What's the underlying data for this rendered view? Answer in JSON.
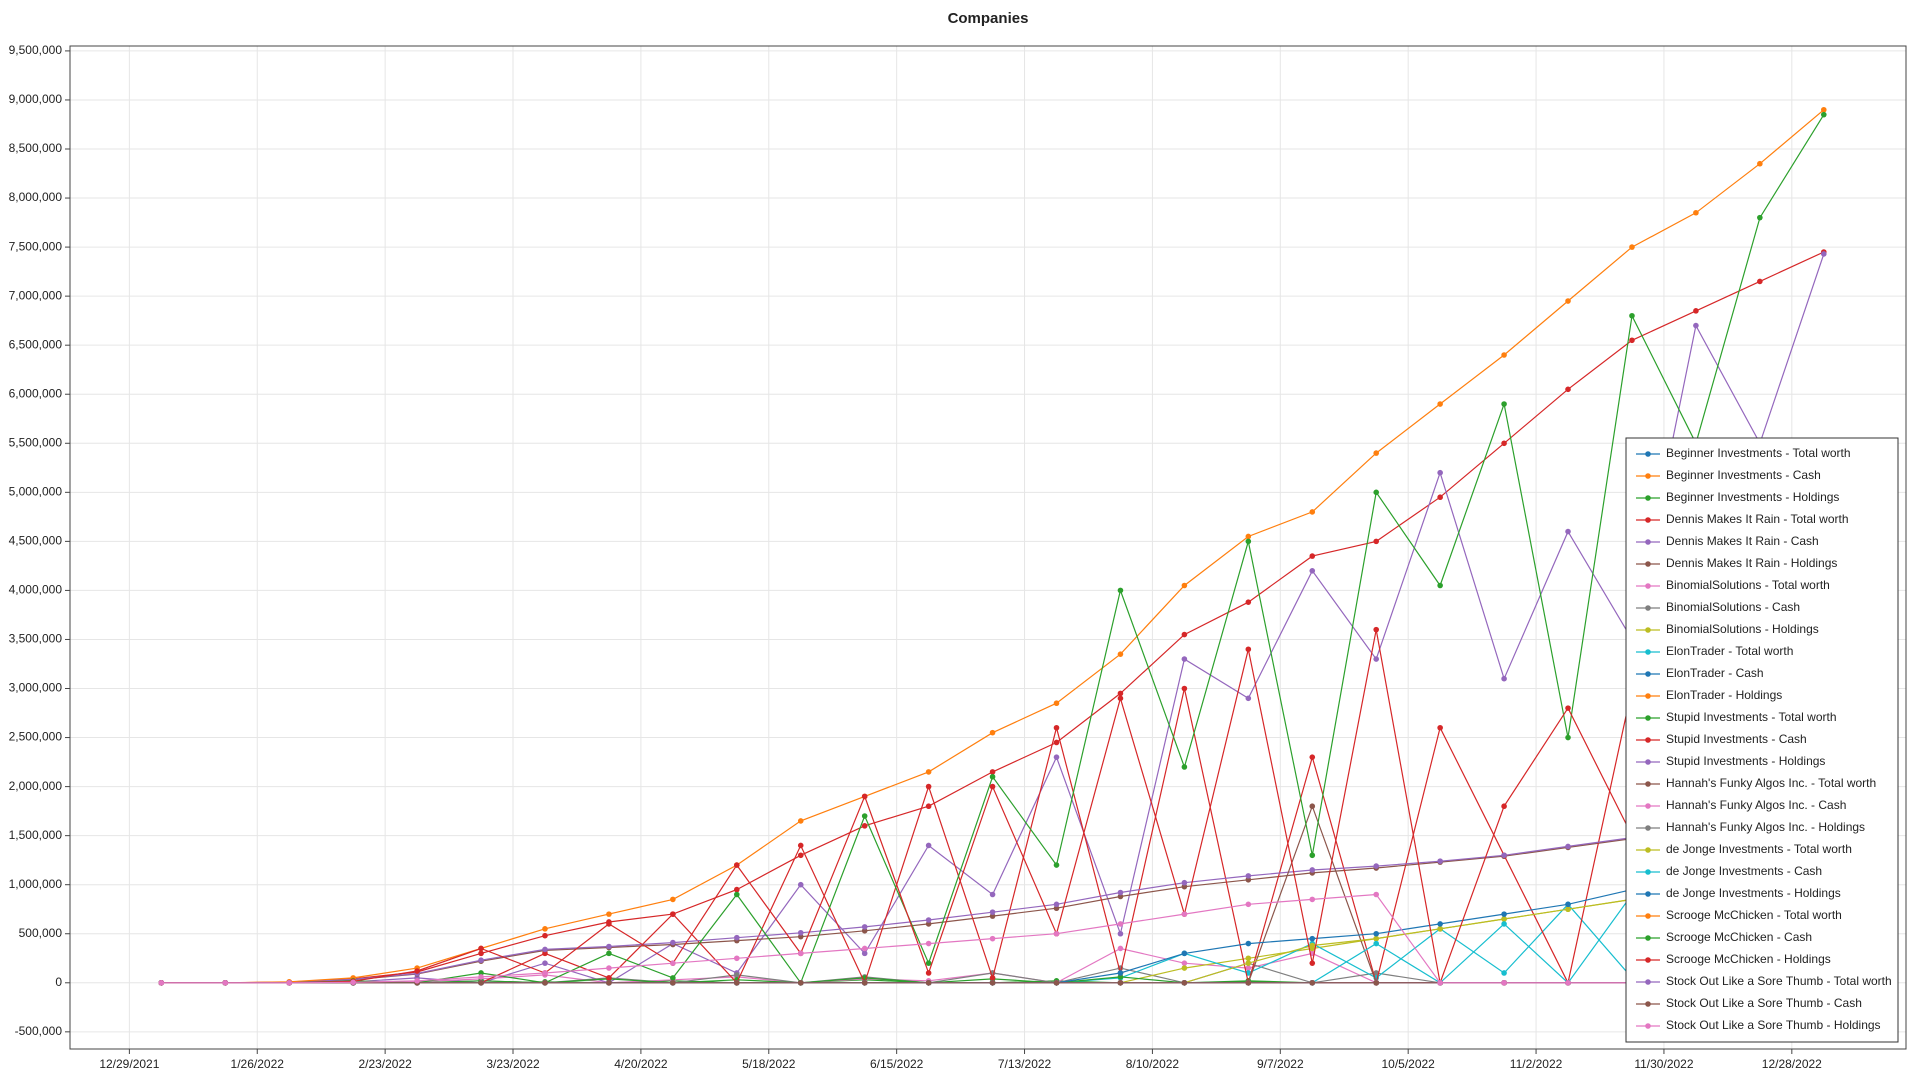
{
  "chart_data": {
    "type": "line",
    "title": "Companies",
    "x": [
      "1/5/2022",
      "1/19/2022",
      "2/2/2022",
      "2/16/2022",
      "3/2/2022",
      "3/16/2022",
      "3/30/2022",
      "4/13/2022",
      "4/27/2022",
      "5/11/2022",
      "5/25/2022",
      "6/8/2022",
      "6/22/2022",
      "7/6/2022",
      "7/20/2022",
      "8/3/2022",
      "8/17/2022",
      "8/31/2022",
      "9/14/2022",
      "9/28/2022",
      "10/12/2022",
      "10/26/2022",
      "11/9/2022",
      "11/23/2022",
      "12/7/2022",
      "12/21/2022",
      "1/4/2023"
    ],
    "xlim": [
      "12/16/2021",
      "1/22/2023"
    ],
    "xticks": [
      "12/29/2021",
      "1/26/2022",
      "2/23/2022",
      "3/23/2022",
      "4/20/2022",
      "5/18/2022",
      "6/15/2022",
      "7/13/2022",
      "8/10/2022",
      "9/7/2022",
      "10/5/2022",
      "11/2/2022",
      "11/30/2022",
      "12/28/2022"
    ],
    "ylim": [
      -675000,
      9550000
    ],
    "yticks": [
      {
        "value": -500000,
        "label": "-500,000"
      },
      0,
      {
        "value": 500000,
        "label": "500,000"
      },
      {
        "value": 1000000,
        "label": "1,000,000"
      },
      {
        "value": 1500000,
        "label": "1,500,000"
      },
      {
        "value": 2000000,
        "label": "2,000,000"
      },
      {
        "value": 2500000,
        "label": "2,500,000"
      },
      {
        "value": 3000000,
        "label": "3,000,000"
      },
      {
        "value": 3500000,
        "label": "3,500,000"
      },
      {
        "value": 4000000,
        "label": "4,000,000"
      },
      {
        "value": 4500000,
        "label": "4,500,000"
      },
      {
        "value": 5000000,
        "label": "5,000,000"
      },
      {
        "value": 5500000,
        "label": "5,500,000"
      },
      {
        "value": 6000000,
        "label": "6,000,000"
      },
      {
        "value": 6500000,
        "label": "6,500,000"
      },
      {
        "value": 7000000,
        "label": "7,000,000"
      },
      {
        "value": 7500000,
        "label": "7,500,000"
      },
      {
        "value": 8000000,
        "label": "8,000,000"
      },
      {
        "value": 8500000,
        "label": "8,500,000"
      },
      {
        "value": 9000000,
        "label": "9,000,000"
      },
      {
        "value": 9500000,
        "label": "9,500,000"
      }
    ],
    "grid": true,
    "legend": "lower right",
    "series": [
      {
        "name": "Beginner Investments - Total worth",
        "color": "#1f77b4",
        "values": [
          0,
          0,
          0,
          0,
          0,
          0,
          0,
          0,
          0,
          0,
          0,
          0,
          0,
          0,
          0,
          0,
          0,
          0,
          0,
          0,
          0,
          0,
          0,
          0,
          0,
          0,
          0
        ]
      },
      {
        "name": "Beginner Investments - Cash",
        "color": "#ff7f0e",
        "values": [
          0,
          0,
          0,
          0,
          0,
          0,
          0,
          0,
          0,
          0,
          0,
          0,
          0,
          0,
          0,
          0,
          0,
          0,
          0,
          0,
          0,
          0,
          0,
          0,
          0,
          0,
          0
        ]
      },
      {
        "name": "Beginner Investments - Holdings",
        "color": "#2ca02c",
        "values": [
          0,
          0,
          0,
          0,
          0,
          0,
          10000,
          0,
          20000,
          0,
          0,
          30000,
          0,
          0,
          20000,
          0,
          0,
          10000,
          0,
          0,
          0,
          0,
          0,
          0,
          0,
          0,
          0
        ]
      },
      {
        "name": "Dennis Makes It Rain - Total worth",
        "color": "#d62728",
        "values": [
          0,
          0,
          8000,
          40000,
          110000,
          300000,
          480000,
          620000,
          700000,
          950000,
          1300000,
          1600000,
          1800000,
          2150000,
          2450000,
          2950000,
          3550000,
          3880000,
          4350000,
          4500000,
          4950000,
          5500000,
          6050000,
          6550000,
          6850000,
          7150000,
          7450000
        ]
      },
      {
        "name": "Dennis Makes It Rain - Cash",
        "color": "#9467bd",
        "values": [
          0,
          0,
          0,
          10000,
          50000,
          0,
          200000,
          0,
          400000,
          100000,
          1000000,
          300000,
          1400000,
          900000,
          2300000,
          500000,
          3300000,
          2900000,
          4200000,
          3300000,
          5200000,
          3100000,
          4600000,
          3500000,
          6700000,
          5500000,
          7430000
        ]
      },
      {
        "name": "Dennis Makes It Rain - Holdings",
        "color": "#8c564b",
        "values": [
          0,
          0,
          5000,
          30000,
          90000,
          220000,
          330000,
          360000,
          390000,
          430000,
          470000,
          530000,
          600000,
          680000,
          760000,
          880000,
          980000,
          1050000,
          1120000,
          1170000,
          1230000,
          1290000,
          1380000,
          1470000,
          1520000,
          1540000,
          1560000
        ]
      },
      {
        "name": "BinomialSolutions - Total worth",
        "color": "#e377c2",
        "values": [
          0,
          0,
          0,
          0,
          10000,
          40000,
          80000,
          0,
          30000,
          60000,
          0,
          40000,
          20000,
          100000,
          0,
          350000,
          200000,
          150000,
          300000,
          0,
          0,
          0,
          0,
          0,
          0,
          0,
          0
        ]
      },
      {
        "name": "BinomialSolutions - Cash",
        "color": "#7f7f7f",
        "values": [
          0,
          0,
          0,
          0,
          0,
          20000,
          0,
          50000,
          0,
          80000,
          0,
          60000,
          0,
          100000,
          0,
          150000,
          0,
          200000,
          0,
          100000,
          0,
          0,
          0,
          0,
          0,
          0,
          0
        ]
      },
      {
        "name": "BinomialSolutions - Holdings",
        "color": "#bcbd22",
        "values": [
          0,
          0,
          0,
          0,
          0,
          0,
          0,
          0,
          0,
          0,
          0,
          0,
          0,
          0,
          0,
          0,
          150000,
          250000,
          350000,
          450000,
          550000,
          650000,
          750000,
          850000,
          950000,
          1050000,
          1100000
        ]
      },
      {
        "name": "ElonTrader - Total worth",
        "color": "#17becf",
        "values": [
          0,
          0,
          0,
          0,
          0,
          0,
          0,
          0,
          0,
          0,
          0,
          0,
          0,
          0,
          0,
          50000,
          300000,
          100000,
          400000,
          50000,
          550000,
          100000,
          800000,
          50000,
          950000,
          0,
          1100000
        ]
      },
      {
        "name": "ElonTrader - Cash",
        "color": "#1f77b4",
        "values": [
          0,
          0,
          0,
          0,
          0,
          0,
          0,
          0,
          0,
          0,
          0,
          0,
          0,
          0,
          0,
          0,
          0,
          0,
          0,
          0,
          0,
          0,
          0,
          0,
          0,
          0,
          0
        ]
      },
      {
        "name": "ElonTrader - Holdings",
        "color": "#ff7f0e",
        "values": [
          0,
          0,
          0,
          0,
          0,
          0,
          0,
          0,
          0,
          0,
          0,
          0,
          0,
          0,
          0,
          0,
          0,
          0,
          0,
          0,
          0,
          0,
          0,
          0,
          0,
          0,
          0
        ]
      },
      {
        "name": "Stupid Investments - Total worth",
        "color": "#2ca02c",
        "values": [
          0,
          0,
          0,
          0,
          0,
          20000,
          0,
          40000,
          0,
          30000,
          0,
          50000,
          0,
          40000,
          0,
          60000,
          0,
          20000,
          0,
          0,
          0,
          0,
          0,
          0,
          0,
          0,
          0
        ]
      },
      {
        "name": "Stupid Investments - Cash",
        "color": "#d62728",
        "values": [
          0,
          0,
          0,
          0,
          0,
          0,
          300000,
          50000,
          700000,
          0,
          1400000,
          0,
          2000000,
          50000,
          2600000,
          100000,
          3000000,
          0,
          2300000,
          0,
          2600000,
          1300000,
          0,
          3000000,
          0,
          2000000,
          0
        ]
      },
      {
        "name": "Stupid Investments - Holdings",
        "color": "#9467bd",
        "values": [
          0,
          0,
          5000,
          35000,
          95000,
          230000,
          340000,
          370000,
          410000,
          460000,
          510000,
          570000,
          640000,
          720000,
          800000,
          920000,
          1020000,
          1090000,
          1150000,
          1190000,
          1240000,
          1300000,
          1390000,
          1480000,
          1530000,
          1550000,
          1570000
        ]
      },
      {
        "name": "Hannah's Funky Algos Inc. - Total worth",
        "color": "#8c564b",
        "values": [
          0,
          0,
          0,
          0,
          0,
          0,
          0,
          0,
          0,
          0,
          0,
          0,
          0,
          0,
          0,
          0,
          0,
          0,
          1800000,
          0,
          0,
          0,
          0,
          0,
          0,
          0,
          0
        ]
      },
      {
        "name": "Hannah's Funky Algos Inc. - Cash",
        "color": "#e377c2",
        "values": [
          0,
          0,
          0,
          0,
          0,
          0,
          0,
          0,
          0,
          0,
          0,
          0,
          0,
          0,
          0,
          0,
          0,
          0,
          0,
          0,
          0,
          0,
          0,
          0,
          0,
          0,
          0
        ]
      },
      {
        "name": "Hannah's Funky Algos Inc. - Holdings",
        "color": "#7f7f7f",
        "values": [
          0,
          0,
          0,
          0,
          0,
          0,
          0,
          0,
          0,
          0,
          0,
          0,
          0,
          0,
          0,
          0,
          0,
          0,
          0,
          0,
          0,
          0,
          0,
          0,
          0,
          0,
          0
        ]
      },
      {
        "name": "de Jonge Investments - Total worth",
        "color": "#bcbd22",
        "values": [
          0,
          0,
          0,
          0,
          0,
          0,
          0,
          0,
          0,
          0,
          0,
          0,
          0,
          0,
          0,
          0,
          0,
          200000,
          380000,
          450000,
          550000,
          650000,
          750000,
          850000,
          950000,
          1080000,
          1120000
        ]
      },
      {
        "name": "de Jonge Investments - Cash",
        "color": "#17becf",
        "values": [
          0,
          0,
          0,
          0,
          0,
          0,
          0,
          0,
          0,
          0,
          0,
          0,
          0,
          0,
          0,
          0,
          0,
          0,
          0,
          400000,
          0,
          600000,
          0,
          900000,
          0,
          1100000,
          0
        ]
      },
      {
        "name": "de Jonge Investments - Holdings",
        "color": "#1f77b4",
        "values": [
          0,
          0,
          0,
          0,
          0,
          0,
          0,
          0,
          0,
          0,
          0,
          0,
          0,
          0,
          0,
          100000,
          300000,
          400000,
          450000,
          500000,
          600000,
          700000,
          800000,
          950000,
          1050000,
          1100000,
          1120000
        ]
      },
      {
        "name": "Scrooge McChicken - Total worth",
        "color": "#ff7f0e",
        "values": [
          0,
          0,
          10000,
          50000,
          150000,
          350000,
          550000,
          700000,
          850000,
          1200000,
          1650000,
          1900000,
          2150000,
          2550000,
          2850000,
          3350000,
          4050000,
          4550000,
          4800000,
          5400000,
          5900000,
          6400000,
          6950000,
          7500000,
          7850000,
          8350000,
          8900000
        ]
      },
      {
        "name": "Scrooge McChicken - Cash",
        "color": "#2ca02c",
        "values": [
          0,
          0,
          0,
          20000,
          0,
          100000,
          0,
          300000,
          50000,
          900000,
          0,
          1700000,
          200000,
          2100000,
          1200000,
          4000000,
          2200000,
          4500000,
          1300000,
          5000000,
          4050000,
          5900000,
          2500000,
          6800000,
          5500000,
          7800000,
          8850000
        ]
      },
      {
        "name": "Scrooge McChicken - Holdings",
        "color": "#d62728",
        "values": [
          0,
          0,
          0,
          15000,
          120000,
          350000,
          100000,
          600000,
          200000,
          1200000,
          300000,
          1900000,
          100000,
          2000000,
          500000,
          2900000,
          700000,
          3400000,
          200000,
          3600000,
          0,
          1800000,
          2800000,
          1500000,
          3000000,
          900000,
          2300000
        ]
      },
      {
        "name": "Stock Out Like a Sore Thumb - Total worth",
        "color": "#9467bd",
        "values": [
          0,
          0,
          0,
          0,
          0,
          0,
          0,
          0,
          0,
          0,
          0,
          0,
          0,
          0,
          0,
          0,
          0,
          0,
          0,
          0,
          0,
          0,
          0,
          0,
          0,
          0,
          0
        ]
      },
      {
        "name": "Stock Out Like a Sore Thumb - Cash",
        "color": "#8c564b",
        "values": [
          0,
          0,
          0,
          0,
          0,
          0,
          0,
          0,
          0,
          0,
          0,
          0,
          0,
          0,
          0,
          0,
          0,
          0,
          0,
          0,
          0,
          0,
          0,
          0,
          0,
          0,
          0
        ]
      },
      {
        "name": "Stock Out Like a Sore Thumb - Holdings",
        "color": "#e377c2",
        "values": [
          0,
          0,
          0,
          5000,
          20000,
          60000,
          100000,
          150000,
          200000,
          250000,
          300000,
          350000,
          400000,
          450000,
          500000,
          600000,
          700000,
          800000,
          850000,
          900000,
          0,
          0,
          0,
          0,
          0,
          0,
          0
        ]
      }
    ]
  }
}
